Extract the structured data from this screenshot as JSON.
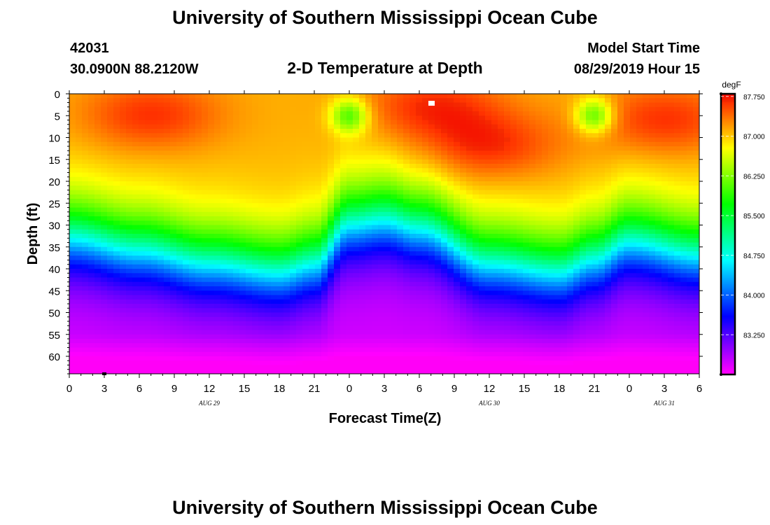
{
  "header": {
    "title": "University of Southern Mississippi Ocean Cube",
    "station_id": "42031",
    "location": "30.0900N 88.2120W",
    "subtitle": "2-D Temperature at Depth",
    "model_label": "Model Start Time",
    "model_time": "08/29/2019 Hour 15"
  },
  "footer": {
    "title": "University of Southern Mississippi Ocean Cube"
  },
  "chart_data": {
    "type": "heatmap",
    "title": "2-D Temperature at Depth",
    "xlabel": "Forecast Time(Z)",
    "ylabel": "Depth (ft)",
    "x_hours_range": [
      0,
      54
    ],
    "y_range": [
      0,
      64
    ],
    "x_tick_labels": [
      "0",
      "3",
      "6",
      "9",
      "12",
      "15",
      "18",
      "21",
      "0",
      "3",
      "6",
      "9",
      "12",
      "15",
      "18",
      "21",
      "0",
      "3",
      "6"
    ],
    "y_tick_labels": [
      "0",
      "5",
      "10",
      "15",
      "20",
      "25",
      "30",
      "35",
      "40",
      "45",
      "50",
      "55",
      "60"
    ],
    "y_tick_values": [
      0,
      5,
      10,
      15,
      20,
      25,
      30,
      35,
      40,
      45,
      50,
      55,
      60
    ],
    "date_labels": [
      {
        "text": "AUG 29",
        "hour": 12
      },
      {
        "text": "AUG 30",
        "hour": 36
      },
      {
        "text": "AUG 31",
        "hour": 51
      }
    ],
    "colorbar": {
      "unit": "degF",
      "labels": [
        "87.750",
        "87.000",
        "86.250",
        "85.500",
        "84.750",
        "84.000",
        "83.250"
      ],
      "values": [
        87.75,
        87.0,
        86.25,
        85.5,
        84.75,
        84.0,
        83.25
      ],
      "range": [
        82.5,
        87.8
      ]
    },
    "thermocline_depth_ft": {
      "hours": [
        0,
        6,
        12,
        18,
        21,
        24,
        27,
        30,
        36,
        42,
        45,
        48,
        54
      ],
      "values": [
        32,
        35,
        38,
        40,
        38,
        29,
        28,
        30,
        38,
        40,
        37,
        33,
        36
      ]
    },
    "warm_cores": [
      {
        "hour": 7,
        "depth": 5,
        "temp": 87.6
      },
      {
        "hour": 31,
        "depth": 3,
        "temp": 87.6
      },
      {
        "hour": 36,
        "depth": 12,
        "temp": 87.3
      },
      {
        "hour": 51,
        "depth": 6,
        "temp": 87.2
      }
    ],
    "cool_spots": [
      {
        "hour": 24,
        "depth": 5,
        "temp": 86.0
      },
      {
        "hour": 45,
        "depth": 5,
        "temp": 86.0
      }
    ]
  }
}
